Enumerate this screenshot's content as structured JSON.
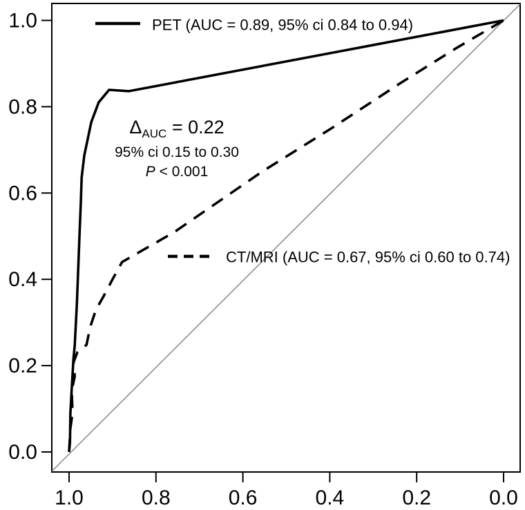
{
  "figure": {
    "legend": {
      "pet_label": "PET (AUC = 0.89, 95% ci 0.84 to 0.94)",
      "ct_mri_label": "CT/MRI (AUC = 0.67, 95% ci 0.60 to 0.74)"
    },
    "annotation": {
      "delta_symbol": "Δ",
      "delta_subscript": "AUC",
      "delta_value": " = 0.22",
      "ci_line": "95% ci 0.15 to 0.30",
      "p_symbol": "P",
      "p_value": " < 0.001"
    },
    "colors": {
      "curve": "#000000",
      "reference_line": "#7f7f7f",
      "background": "#ffffff",
      "text": "#000000"
    }
  },
  "chart_data": {
    "type": "line",
    "subtype": "roc-curves",
    "title": "",
    "xlabel": "",
    "ylabel": "",
    "grid": false,
    "x_axis": {
      "reversed": true,
      "range": [
        1.0,
        0.0
      ],
      "tick_values": [
        1.0,
        0.8,
        0.6,
        0.4,
        0.2,
        0.0
      ],
      "tick_labels": [
        "1.0",
        "0.8",
        "0.6",
        "0.4",
        "0.2",
        "0.0"
      ]
    },
    "y_axis": {
      "range": [
        0.0,
        1.0
      ],
      "tick_values": [
        0.0,
        0.2,
        0.4,
        0.6,
        0.8,
        1.0
      ],
      "tick_labels": [
        "0.0",
        "0.2",
        "0.4",
        "0.6",
        "0.8",
        "1.0"
      ]
    },
    "series": [
      {
        "name": "PET",
        "auc": 0.89,
        "ci_95": "0.84 to 0.94",
        "style": "solid",
        "points": [
          [
            1.0,
            0.0
          ],
          [
            0.998,
            0.022
          ],
          [
            0.997,
            0.09
          ],
          [
            0.994,
            0.146
          ],
          [
            0.99,
            0.215
          ],
          [
            0.987,
            0.247
          ],
          [
            0.982,
            0.343
          ],
          [
            0.979,
            0.423
          ],
          [
            0.976,
            0.503
          ],
          [
            0.973,
            0.578
          ],
          [
            0.971,
            0.636
          ],
          [
            0.965,
            0.687
          ],
          [
            0.949,
            0.764
          ],
          [
            0.932,
            0.81
          ],
          [
            0.908,
            0.839
          ],
          [
            0.862,
            0.836
          ],
          [
            0.0,
            1.0
          ]
        ]
      },
      {
        "name": "CT/MRI",
        "auc": 0.67,
        "ci_95": "0.60 to 0.74",
        "style": "dashed",
        "points": [
          [
            1.0,
            0.0
          ],
          [
            0.997,
            0.055
          ],
          [
            0.992,
            0.09
          ],
          [
            0.994,
            0.143
          ],
          [
            0.987,
            0.175
          ],
          [
            0.99,
            0.207
          ],
          [
            0.981,
            0.231
          ],
          [
            0.96,
            0.248
          ],
          [
            0.951,
            0.291
          ],
          [
            0.938,
            0.33
          ],
          [
            0.921,
            0.36
          ],
          [
            0.9,
            0.4
          ],
          [
            0.878,
            0.44
          ],
          [
            0.757,
            0.51
          ],
          [
            0.555,
            0.65
          ],
          [
            0.396,
            0.75
          ],
          [
            0.237,
            0.855
          ],
          [
            0.11,
            0.935
          ],
          [
            0.0,
            1.0
          ]
        ]
      }
    ],
    "reference_line": {
      "description": "chance diagonal",
      "from": [
        1.0,
        0.0
      ],
      "to": [
        0.0,
        1.0
      ],
      "color": "#7f7f7f"
    },
    "annotation_text": [
      "ΔAUC = 0.22",
      "95% ci 0.15 to 0.30",
      "P < 0.001"
    ],
    "legend_position": "inside"
  }
}
